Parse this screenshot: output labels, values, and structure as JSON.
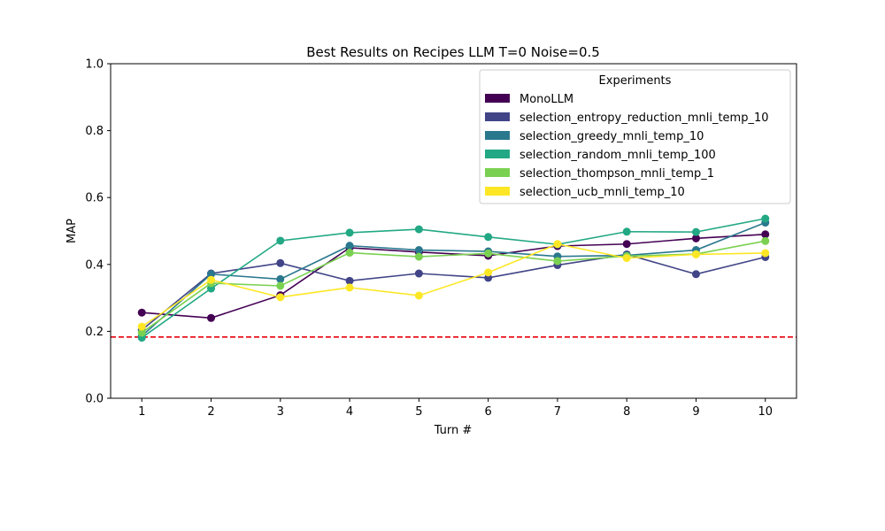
{
  "chart_data": {
    "type": "line",
    "title": "Best Results on Recipes LLM T=0 Noise=0.5",
    "xlabel": "Turn #",
    "ylabel": "MAP",
    "x": [
      1,
      2,
      3,
      4,
      5,
      6,
      7,
      8,
      9,
      10
    ],
    "xlim": [
      0.55,
      10.45
    ],
    "ylim": [
      0.0,
      1.0
    ],
    "xticks": [
      "1",
      "2",
      "3",
      "4",
      "5",
      "6",
      "7",
      "8",
      "9",
      "10"
    ],
    "yticks": [
      "0.0",
      "0.2",
      "0.4",
      "0.6",
      "0.8",
      "1.0"
    ],
    "grid": false,
    "legend": {
      "title": "Experiments",
      "placement": "top-right"
    },
    "baseline": {
      "value": 0.183,
      "color": "#e8000b",
      "style": "dashed"
    },
    "series": [
      {
        "name": "MonoLLM",
        "color": "#440154",
        "values": [
          0.256,
          0.24,
          0.308,
          0.45,
          0.437,
          0.426,
          0.455,
          0.461,
          0.478,
          0.49
        ]
      },
      {
        "name": "selection_entropy_reduction_mnli_temp_10",
        "color": "#414487",
        "values": [
          0.204,
          0.373,
          0.404,
          0.351,
          0.373,
          0.36,
          0.398,
          0.43,
          0.371,
          0.422
        ]
      },
      {
        "name": "selection_greedy_mnli_temp_10",
        "color": "#2a788e",
        "values": [
          0.186,
          0.371,
          0.356,
          0.456,
          0.443,
          0.439,
          0.424,
          0.427,
          0.443,
          0.525
        ]
      },
      {
        "name": "selection_random_mnli_temp_100",
        "color": "#22a884",
        "values": [
          0.181,
          0.328,
          0.471,
          0.495,
          0.505,
          0.482,
          0.46,
          0.498,
          0.497,
          0.537
        ]
      },
      {
        "name": "selection_thompson_mnli_temp_1",
        "color": "#7ad151",
        "values": [
          0.196,
          0.344,
          0.336,
          0.435,
          0.423,
          0.433,
          0.41,
          0.425,
          0.431,
          0.47
        ]
      },
      {
        "name": "selection_ucb_mnli_temp_10",
        "color": "#fde725",
        "values": [
          0.214,
          0.354,
          0.302,
          0.331,
          0.307,
          0.376,
          0.461,
          0.419,
          0.43,
          0.434
        ]
      }
    ]
  }
}
